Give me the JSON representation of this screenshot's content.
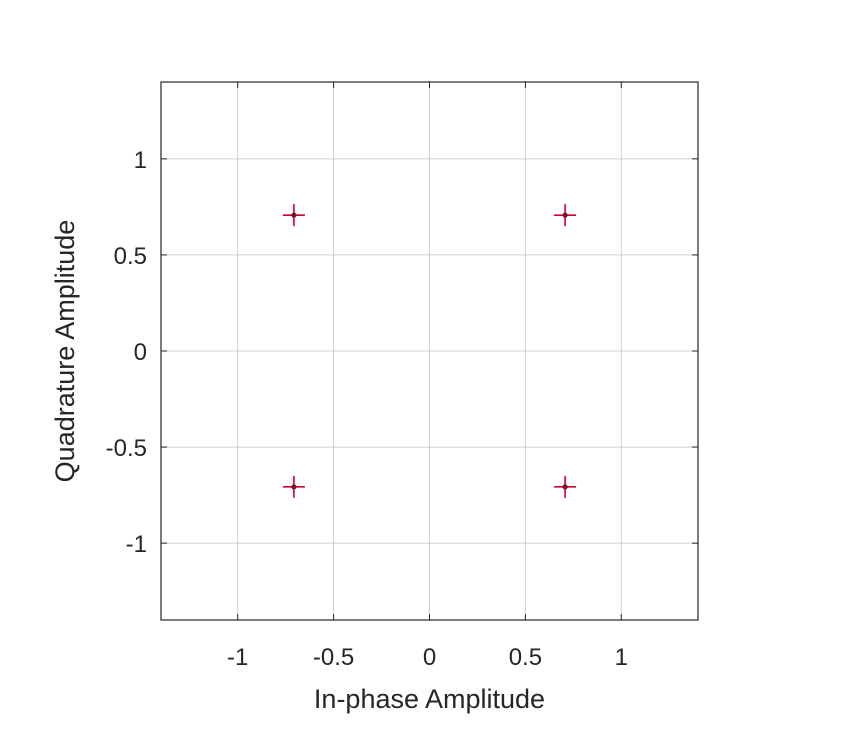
{
  "chart_data": {
    "type": "scatter",
    "title": "",
    "xlabel": "In-phase Amplitude",
    "ylabel": "Quadrature Amplitude",
    "xlim": [
      -1.4,
      1.4
    ],
    "ylim": [
      -1.4,
      1.4
    ],
    "xticks": [
      -1,
      -0.5,
      0,
      0.5,
      1
    ],
    "xtick_labels": [
      "-1",
      "-0.5",
      "0",
      "0.5",
      "1"
    ],
    "yticks": [
      -1,
      -0.5,
      0,
      0.5,
      1
    ],
    "ytick_labels": [
      "-1",
      "-0.5",
      "0",
      "0.5",
      "1"
    ],
    "grid": true,
    "legend": "none",
    "series": [
      {
        "marker": "plus",
        "color": "#cc0033",
        "x": [
          -0.707,
          0.707,
          -0.707,
          0.707
        ],
        "y": [
          0.707,
          0.707,
          -0.707,
          -0.707
        ]
      }
    ]
  }
}
